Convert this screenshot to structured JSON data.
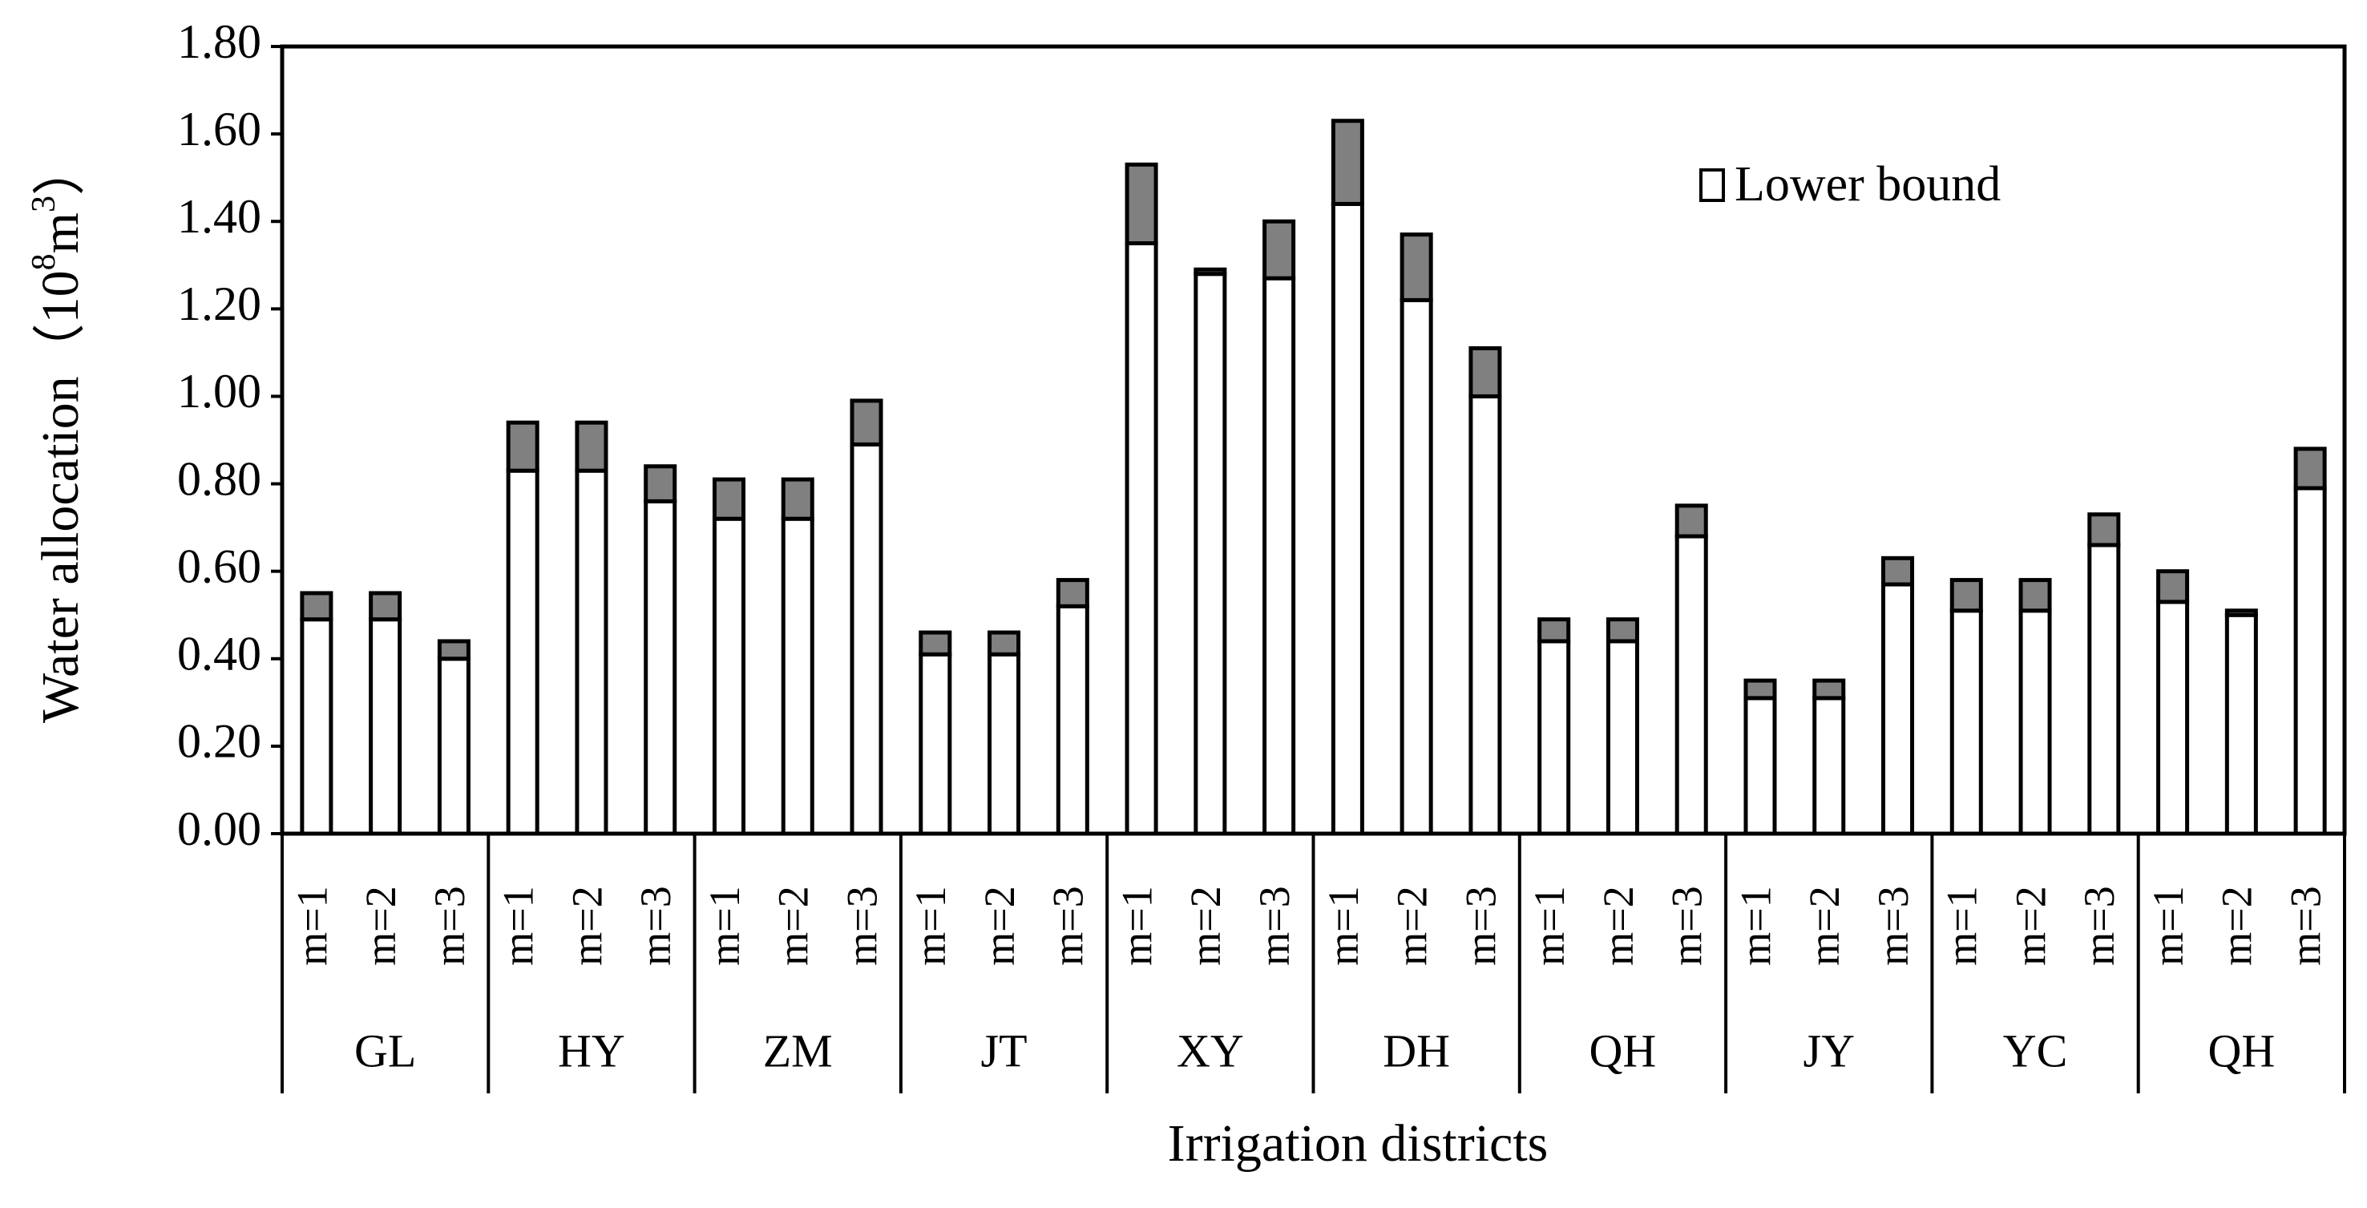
{
  "chart_data": {
    "type": "bar",
    "stacked": true,
    "ylabel": "Water allocation（10",
    "ylabel_sup1": "8",
    "ylabel_mid": "m",
    "ylabel_sup2": "3",
    "ylabel_end": "）",
    "xlabel": "Irrigation districts",
    "ylim": [
      0,
      1.8
    ],
    "yticks": [
      "0.00",
      "0.20",
      "0.40",
      "0.60",
      "0.80",
      "1.00",
      "1.20",
      "1.40",
      "1.60",
      "1.80"
    ],
    "legend": {
      "label": "Lower bound",
      "placement": "top-right"
    },
    "groups": [
      {
        "name": "GL",
        "subcategories": [
          "m=1",
          "m=2",
          "m=3"
        ]
      },
      {
        "name": "HY",
        "subcategories": [
          "m=1",
          "m=2",
          "m=3"
        ]
      },
      {
        "name": "ZM",
        "subcategories": [
          "m=1",
          "m=2",
          "m=3"
        ]
      },
      {
        "name": "JT",
        "subcategories": [
          "m=1",
          "m=2",
          "m=3"
        ]
      },
      {
        "name": "XY",
        "subcategories": [
          "m=1",
          "m=2",
          "m=3"
        ]
      },
      {
        "name": "DH",
        "subcategories": [
          "m=1",
          "m=2",
          "m=3"
        ]
      },
      {
        "name": "QH",
        "subcategories": [
          "m=1",
          "m=2",
          "m=3"
        ]
      },
      {
        "name": "JY",
        "subcategories": [
          "m=1",
          "m=2",
          "m=3"
        ]
      },
      {
        "name": "YC",
        "subcategories": [
          "m=1",
          "m=2",
          "m=3"
        ]
      },
      {
        "name": "QH",
        "subcategories": [
          "m=1",
          "m=2",
          "m=3"
        ]
      }
    ],
    "series": [
      {
        "name": "Lower bound",
        "color": "#ffffff",
        "values": [
          0.49,
          0.49,
          0.4,
          0.83,
          0.83,
          0.76,
          0.72,
          0.72,
          0.89,
          0.41,
          0.41,
          0.52,
          1.35,
          1.28,
          1.27,
          1.44,
          1.22,
          1.0,
          0.44,
          0.44,
          0.68,
          0.31,
          0.31,
          0.57,
          0.51,
          0.51,
          0.66,
          0.53,
          0.5,
          0.79
        ]
      },
      {
        "color": "#808080",
        "values": [
          0.06,
          0.06,
          0.04,
          0.11,
          0.11,
          0.08,
          0.09,
          0.09,
          0.1,
          0.05,
          0.05,
          0.06,
          0.18,
          0.01,
          0.13,
          0.19,
          0.15,
          0.11,
          0.05,
          0.05,
          0.07,
          0.04,
          0.04,
          0.06,
          0.07,
          0.07,
          0.07,
          0.07,
          0.01,
          0.09
        ]
      }
    ]
  }
}
